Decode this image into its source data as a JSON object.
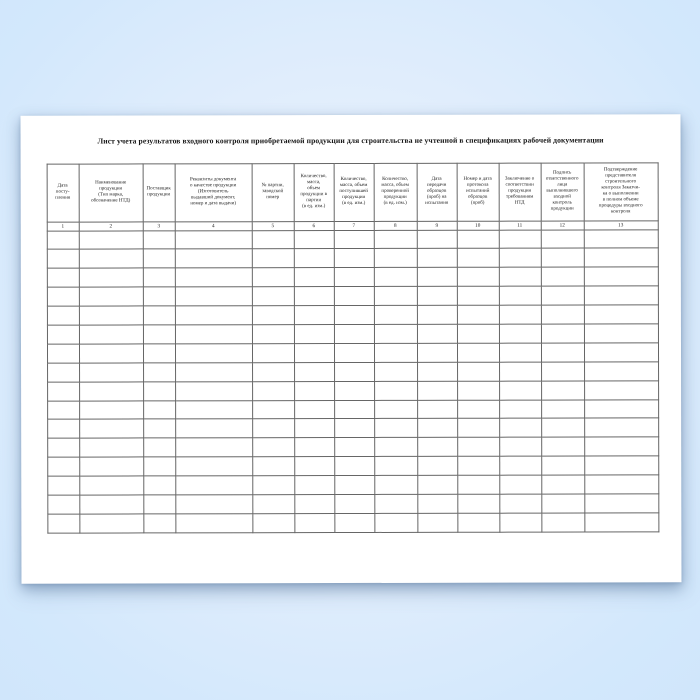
{
  "background": {
    "edge_color": "#d3e8fc",
    "center_color": "#eef5fe"
  },
  "document": {
    "title": "Лист учета результатов входного контроля приобретаемой продукции для строительства не учтенной в спецификациях рабочей документации",
    "paper_color": "#ffffff",
    "table": {
      "border_color": "#666666",
      "empty_row_count": 16,
      "columns": [
        {
          "num": "1",
          "header": "Дата\nпосту-\nпления"
        },
        {
          "num": "2",
          "header": "Наименование\nпродукции\n(Тип марка,\nобозначение НТД)"
        },
        {
          "num": "3",
          "header": "Поставщик\nпродукции"
        },
        {
          "num": "4",
          "header": "Реквизиты документа\nо качестве продукции\n(Изготовитель\nвыдавший документ,\nномер и дата выдачи)"
        },
        {
          "num": "5",
          "header": "№ партии,\nзаводской\nномер"
        },
        {
          "num": "6",
          "header": "Количество,\nмасса,\nобъем\nпродукции в\nпартии\n(в ед. изм.)"
        },
        {
          "num": "7",
          "header": "Количество,\nмасса, объем\nпоступившей\nпродукции\n(в ед. изм.)"
        },
        {
          "num": "8",
          "header": "Количество,\nмасса, объем\nпроверенной\nпродукции\n(в ед. изм.)"
        },
        {
          "num": "9",
          "header": "Дата\nпередачи\nобразцов\n(проб) на\nиспытания"
        },
        {
          "num": "10",
          "header": "Номер и дата\nпротокола\nиспытаний\nобразцов\n(проб)"
        },
        {
          "num": "11",
          "header": "Заключение о\nсоответствии\nпродукции\nтребованиям\nНТД"
        },
        {
          "num": "12",
          "header": "Подпись\nответственного\nлица\nвыполнившего\nвходной\nконтроль\nпродукции"
        },
        {
          "num": "13",
          "header": "Подтверждение\nпредставителя\nстроительного\nконтроля Заказчи-\nка о выполнении\nв полном объеме\nпроцедуры входного\nконтроля"
        }
      ]
    }
  }
}
